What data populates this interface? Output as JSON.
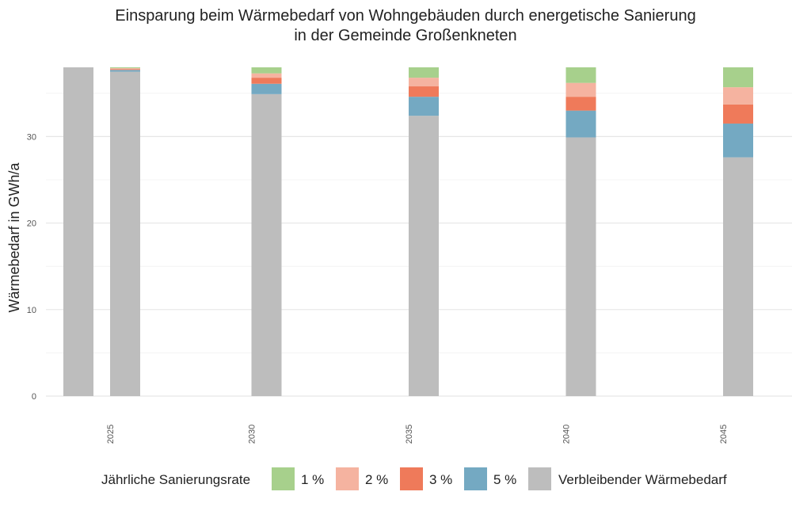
{
  "chart_data": {
    "type": "bar",
    "stacked": true,
    "title": [
      "Einsparung beim Wärmebedarf von Wohngebäuden durch energetische Sanierung",
      "in der Gemeinde Großenkneten"
    ],
    "xlabel": "",
    "ylabel": "Wärmebedarf in GWh/a",
    "ylim": [
      0,
      38
    ],
    "yticks": [
      "0",
      "10",
      "20",
      "30"
    ],
    "grid": true,
    "legend_position": "bottom",
    "legend_title": "Jährliche Sanierungsrate",
    "categories": [
      "2025",
      "2030",
      "2035",
      "2040",
      "2045"
    ],
    "extra_bar": {
      "category": "2025",
      "value": 38.0,
      "color": "#bdbdbd"
    },
    "series": [
      {
        "name": "Verbleibender Wärmebedarf",
        "color": "#bdbdbd",
        "values": [
          37.5,
          34.9,
          32.4,
          29.9,
          27.6
        ]
      },
      {
        "name": "5 %",
        "color": "#74a9c2",
        "values": [
          0.2,
          1.2,
          2.2,
          3.1,
          3.9
        ]
      },
      {
        "name": "3 %",
        "color": "#ef7a5a",
        "values": [
          0.1,
          0.7,
          1.2,
          1.6,
          2.2
        ]
      },
      {
        "name": "2 %",
        "color": "#f5b3a0",
        "values": [
          0.1,
          0.5,
          1.0,
          1.6,
          2.0
        ]
      },
      {
        "name": "1 %",
        "color": "#a7d08c",
        "values": [
          0.1,
          0.7,
          1.2,
          1.8,
          2.3
        ]
      }
    ],
    "legend_order": [
      "1 %",
      "2 %",
      "3 %",
      "5 %",
      "Verbleibender Wärmebedarf"
    ]
  }
}
